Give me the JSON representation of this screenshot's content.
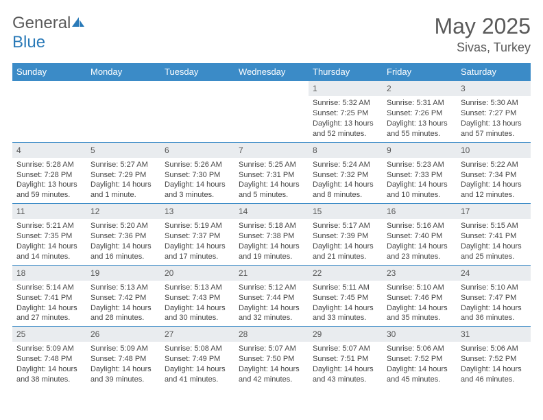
{
  "brand": {
    "name_a": "General",
    "name_b": "Blue"
  },
  "title": "May 2025",
  "location": "Sivas, Turkey",
  "colors": {
    "header_bg": "#3b8bc7",
    "header_text": "#ffffff",
    "daynum_bg": "#e9ecef",
    "border": "#3b8bc7",
    "text": "#444444",
    "title": "#5a5a5a",
    "brand_blue": "#2a7ab8"
  },
  "days_of_week": [
    "Sunday",
    "Monday",
    "Tuesday",
    "Wednesday",
    "Thursday",
    "Friday",
    "Saturday"
  ],
  "weeks": [
    [
      {
        "n": "",
        "sr": "",
        "ss": "",
        "dl": ""
      },
      {
        "n": "",
        "sr": "",
        "ss": "",
        "dl": ""
      },
      {
        "n": "",
        "sr": "",
        "ss": "",
        "dl": ""
      },
      {
        "n": "",
        "sr": "",
        "ss": "",
        "dl": ""
      },
      {
        "n": "1",
        "sr": "Sunrise: 5:32 AM",
        "ss": "Sunset: 7:25 PM",
        "dl": "Daylight: 13 hours and 52 minutes."
      },
      {
        "n": "2",
        "sr": "Sunrise: 5:31 AM",
        "ss": "Sunset: 7:26 PM",
        "dl": "Daylight: 13 hours and 55 minutes."
      },
      {
        "n": "3",
        "sr": "Sunrise: 5:30 AM",
        "ss": "Sunset: 7:27 PM",
        "dl": "Daylight: 13 hours and 57 minutes."
      }
    ],
    [
      {
        "n": "4",
        "sr": "Sunrise: 5:28 AM",
        "ss": "Sunset: 7:28 PM",
        "dl": "Daylight: 13 hours and 59 minutes."
      },
      {
        "n": "5",
        "sr": "Sunrise: 5:27 AM",
        "ss": "Sunset: 7:29 PM",
        "dl": "Daylight: 14 hours and 1 minute."
      },
      {
        "n": "6",
        "sr": "Sunrise: 5:26 AM",
        "ss": "Sunset: 7:30 PM",
        "dl": "Daylight: 14 hours and 3 minutes."
      },
      {
        "n": "7",
        "sr": "Sunrise: 5:25 AM",
        "ss": "Sunset: 7:31 PM",
        "dl": "Daylight: 14 hours and 5 minutes."
      },
      {
        "n": "8",
        "sr": "Sunrise: 5:24 AM",
        "ss": "Sunset: 7:32 PM",
        "dl": "Daylight: 14 hours and 8 minutes."
      },
      {
        "n": "9",
        "sr": "Sunrise: 5:23 AM",
        "ss": "Sunset: 7:33 PM",
        "dl": "Daylight: 14 hours and 10 minutes."
      },
      {
        "n": "10",
        "sr": "Sunrise: 5:22 AM",
        "ss": "Sunset: 7:34 PM",
        "dl": "Daylight: 14 hours and 12 minutes."
      }
    ],
    [
      {
        "n": "11",
        "sr": "Sunrise: 5:21 AM",
        "ss": "Sunset: 7:35 PM",
        "dl": "Daylight: 14 hours and 14 minutes."
      },
      {
        "n": "12",
        "sr": "Sunrise: 5:20 AM",
        "ss": "Sunset: 7:36 PM",
        "dl": "Daylight: 14 hours and 16 minutes."
      },
      {
        "n": "13",
        "sr": "Sunrise: 5:19 AM",
        "ss": "Sunset: 7:37 PM",
        "dl": "Daylight: 14 hours and 17 minutes."
      },
      {
        "n": "14",
        "sr": "Sunrise: 5:18 AM",
        "ss": "Sunset: 7:38 PM",
        "dl": "Daylight: 14 hours and 19 minutes."
      },
      {
        "n": "15",
        "sr": "Sunrise: 5:17 AM",
        "ss": "Sunset: 7:39 PM",
        "dl": "Daylight: 14 hours and 21 minutes."
      },
      {
        "n": "16",
        "sr": "Sunrise: 5:16 AM",
        "ss": "Sunset: 7:40 PM",
        "dl": "Daylight: 14 hours and 23 minutes."
      },
      {
        "n": "17",
        "sr": "Sunrise: 5:15 AM",
        "ss": "Sunset: 7:41 PM",
        "dl": "Daylight: 14 hours and 25 minutes."
      }
    ],
    [
      {
        "n": "18",
        "sr": "Sunrise: 5:14 AM",
        "ss": "Sunset: 7:41 PM",
        "dl": "Daylight: 14 hours and 27 minutes."
      },
      {
        "n": "19",
        "sr": "Sunrise: 5:13 AM",
        "ss": "Sunset: 7:42 PM",
        "dl": "Daylight: 14 hours and 28 minutes."
      },
      {
        "n": "20",
        "sr": "Sunrise: 5:13 AM",
        "ss": "Sunset: 7:43 PM",
        "dl": "Daylight: 14 hours and 30 minutes."
      },
      {
        "n": "21",
        "sr": "Sunrise: 5:12 AM",
        "ss": "Sunset: 7:44 PM",
        "dl": "Daylight: 14 hours and 32 minutes."
      },
      {
        "n": "22",
        "sr": "Sunrise: 5:11 AM",
        "ss": "Sunset: 7:45 PM",
        "dl": "Daylight: 14 hours and 33 minutes."
      },
      {
        "n": "23",
        "sr": "Sunrise: 5:10 AM",
        "ss": "Sunset: 7:46 PM",
        "dl": "Daylight: 14 hours and 35 minutes."
      },
      {
        "n": "24",
        "sr": "Sunrise: 5:10 AM",
        "ss": "Sunset: 7:47 PM",
        "dl": "Daylight: 14 hours and 36 minutes."
      }
    ],
    [
      {
        "n": "25",
        "sr": "Sunrise: 5:09 AM",
        "ss": "Sunset: 7:48 PM",
        "dl": "Daylight: 14 hours and 38 minutes."
      },
      {
        "n": "26",
        "sr": "Sunrise: 5:09 AM",
        "ss": "Sunset: 7:48 PM",
        "dl": "Daylight: 14 hours and 39 minutes."
      },
      {
        "n": "27",
        "sr": "Sunrise: 5:08 AM",
        "ss": "Sunset: 7:49 PM",
        "dl": "Daylight: 14 hours and 41 minutes."
      },
      {
        "n": "28",
        "sr": "Sunrise: 5:07 AM",
        "ss": "Sunset: 7:50 PM",
        "dl": "Daylight: 14 hours and 42 minutes."
      },
      {
        "n": "29",
        "sr": "Sunrise: 5:07 AM",
        "ss": "Sunset: 7:51 PM",
        "dl": "Daylight: 14 hours and 43 minutes."
      },
      {
        "n": "30",
        "sr": "Sunrise: 5:06 AM",
        "ss": "Sunset: 7:52 PM",
        "dl": "Daylight: 14 hours and 45 minutes."
      },
      {
        "n": "31",
        "sr": "Sunrise: 5:06 AM",
        "ss": "Sunset: 7:52 PM",
        "dl": "Daylight: 14 hours and 46 minutes."
      }
    ]
  ]
}
